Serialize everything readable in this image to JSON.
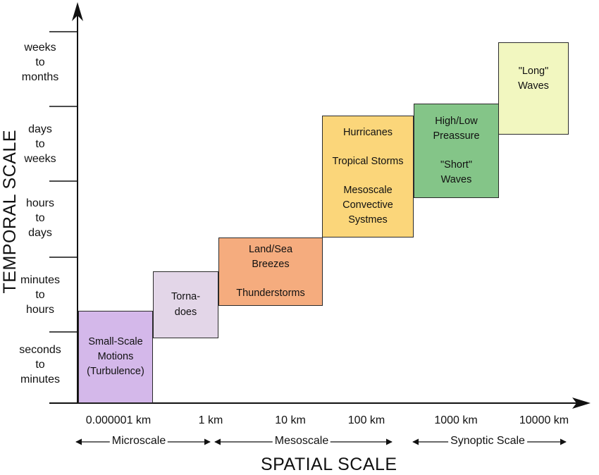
{
  "axes": {
    "y_title": "TEMPORAL SCALE",
    "x_title": "SPATIAL SCALE"
  },
  "y_ticks": [
    "seconds\nto\nminutes",
    "minutes\nto\nhours",
    "hours\nto\ndays",
    "days\nto\nweeks",
    "weeks\nto\nmonths"
  ],
  "x_ticks": [
    "0.000001 km",
    "1 km",
    "10 km",
    "100 km",
    "1000 km",
    "10000 km"
  ],
  "scale_ranges": [
    "Microscale",
    "Mesoscale",
    "Synoptic Scale"
  ],
  "phenomena": [
    {
      "id": "small-scale-motions",
      "color": "#d4b8ea",
      "lines": [
        "Small-Scale\nMotions\n(Turbulence)"
      ]
    },
    {
      "id": "tornadoes",
      "color": "#e3d6e8",
      "lines": [
        "Torna-\ndoes"
      ]
    },
    {
      "id": "land-sea-breezes",
      "color": "#f5ac7e",
      "lines": [
        "Land/Sea\nBreezes",
        "Thunderstorms"
      ]
    },
    {
      "id": "hurricanes",
      "color": "#fbd67a",
      "lines": [
        "Hurricanes",
        "Tropical Storms",
        "Mesoscale\nConvective\nSystmes"
      ]
    },
    {
      "id": "high-low-pressure",
      "color": "#84c588",
      "lines": [
        "High/Low\nPreassure",
        "\"Short\"\nWaves"
      ]
    },
    {
      "id": "long-waves",
      "color": "#f2f7c0",
      "lines": [
        "\"Long\"\nWaves"
      ]
    }
  ]
}
